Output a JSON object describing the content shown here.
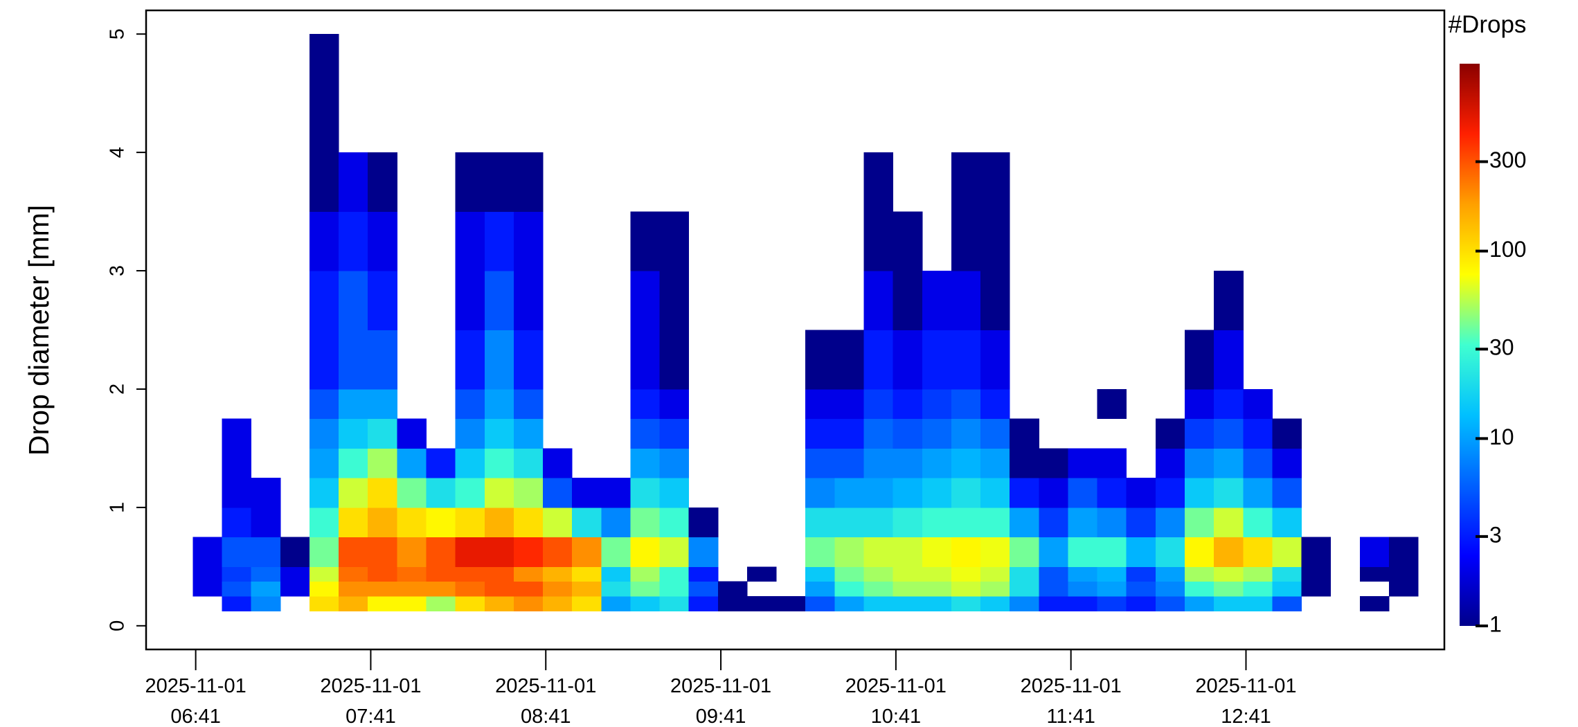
{
  "chart_data": {
    "type": "heatmap",
    "ylabel": "Drop diameter [mm]",
    "colorbar_title": "#Drops",
    "x": [
      "2025-11-01 06:40",
      "2025-11-01 06:50",
      "2025-11-01 07:00",
      "2025-11-01 07:10",
      "2025-11-01 07:20",
      "2025-11-01 07:30",
      "2025-11-01 07:40",
      "2025-11-01 07:50",
      "2025-11-01 08:00",
      "2025-11-01 08:10",
      "2025-11-01 08:20",
      "2025-11-01 08:30",
      "2025-11-01 08:40",
      "2025-11-01 08:50",
      "2025-11-01 09:00",
      "2025-11-01 09:10",
      "2025-11-01 09:20",
      "2025-11-01 09:30",
      "2025-11-01 09:40",
      "2025-11-01 09:50",
      "2025-11-01 10:00",
      "2025-11-01 10:10",
      "2025-11-01 10:20",
      "2025-11-01 10:30",
      "2025-11-01 10:40",
      "2025-11-01 10:50",
      "2025-11-01 11:00",
      "2025-11-01 11:10",
      "2025-11-01 11:20",
      "2025-11-01 11:30",
      "2025-11-01 11:40",
      "2025-11-01 11:50",
      "2025-11-01 12:00",
      "2025-11-01 12:10",
      "2025-11-01 12:20",
      "2025-11-01 12:30",
      "2025-11-01 12:40",
      "2025-11-01 12:50",
      "2025-11-01 13:00",
      "2025-11-01 13:10",
      "2025-11-01 13:20",
      "2025-11-01 13:30"
    ],
    "x_step_minutes": 10,
    "y_bins": [
      0.125,
      0.25,
      0.375,
      0.5,
      0.75,
      1,
      1.25,
      1.5,
      1.75,
      2,
      2.5,
      3,
      3.5,
      4,
      4.5,
      5
    ],
    "z": [
      [
        null,
        2,
        2,
        2,
        null,
        null,
        null,
        null,
        null,
        null,
        null,
        null,
        null,
        null,
        null
      ],
      [
        3,
        5,
        4,
        5,
        3,
        2,
        2,
        2,
        null,
        null,
        null,
        null,
        null,
        null,
        null
      ],
      [
        8,
        10,
        6,
        5,
        2,
        2,
        null,
        null,
        null,
        null,
        null,
        null,
        null,
        null,
        null
      ],
      [
        null,
        2,
        2,
        1,
        null,
        null,
        null,
        null,
        null,
        null,
        null,
        null,
        null,
        null,
        null
      ],
      [
        100,
        80,
        60,
        40,
        30,
        15,
        10,
        8,
        5,
        3,
        3,
        2,
        1,
        1,
        1
      ],
      [
        150,
        200,
        250,
        300,
        100,
        60,
        30,
        15,
        10,
        5,
        5,
        3,
        2,
        null,
        null
      ],
      [
        80,
        200,
        300,
        300,
        150,
        100,
        50,
        20,
        10,
        5,
        3,
        2,
        1,
        null,
        null
      ],
      [
        80,
        200,
        250,
        200,
        100,
        40,
        10,
        2,
        null,
        null,
        null,
        null,
        null,
        null,
        null
      ],
      [
        50,
        200,
        300,
        300,
        80,
        20,
        3,
        null,
        null,
        null,
        null,
        null,
        null,
        null,
        null
      ],
      [
        100,
        250,
        300,
        500,
        100,
        30,
        15,
        8,
        5,
        3,
        2,
        2,
        1,
        null,
        null
      ],
      [
        150,
        300,
        300,
        500,
        150,
        60,
        30,
        15,
        10,
        8,
        5,
        3,
        1,
        null,
        null
      ],
      [
        200,
        300,
        200,
        400,
        100,
        50,
        20,
        10,
        5,
        3,
        2,
        2,
        1,
        null,
        null
      ],
      [
        150,
        200,
        150,
        300,
        60,
        5,
        2,
        null,
        null,
        null,
        null,
        null,
        null,
        null,
        null
      ],
      [
        100,
        150,
        100,
        200,
        20,
        2,
        null,
        null,
        null,
        null,
        null,
        null,
        null,
        null,
        null
      ],
      [
        10,
        20,
        15,
        40,
        8,
        2,
        null,
        null,
        null,
        null,
        null,
        null,
        null,
        null,
        null
      ],
      [
        15,
        40,
        50,
        80,
        40,
        20,
        10,
        5,
        3,
        2,
        2,
        1,
        null,
        null,
        null
      ],
      [
        20,
        30,
        30,
        60,
        30,
        15,
        8,
        4,
        2,
        1,
        1,
        1,
        null,
        null,
        null
      ],
      [
        3,
        5,
        3,
        8,
        1,
        null,
        null,
        null,
        null,
        null,
        null,
        null,
        null,
        null,
        null
      ],
      [
        1,
        1,
        null,
        null,
        null,
        null,
        null,
        null,
        null,
        null,
        null,
        null,
        null,
        null,
        null
      ],
      [
        1,
        null,
        1,
        null,
        null,
        null,
        null,
        null,
        null,
        null,
        null,
        null,
        null,
        null,
        null
      ],
      [
        1,
        null,
        null,
        null,
        null,
        null,
        null,
        null,
        null,
        null,
        null,
        null,
        null,
        null,
        null
      ],
      [
        5,
        10,
        15,
        40,
        20,
        8,
        5,
        3,
        2,
        1,
        null,
        null,
        null,
        null,
        null
      ],
      [
        10,
        30,
        40,
        50,
        20,
        10,
        5,
        3,
        2,
        1,
        null,
        null,
        null,
        null,
        null
      ],
      [
        15,
        40,
        50,
        60,
        20,
        10,
        8,
        6,
        4,
        3,
        2,
        1,
        1,
        null,
        null
      ],
      [
        15,
        50,
        60,
        60,
        25,
        12,
        8,
        5,
        3,
        2,
        1,
        1,
        null,
        null,
        null
      ],
      [
        15,
        50,
        60,
        70,
        30,
        15,
        10,
        6,
        4,
        3,
        2,
        null,
        null,
        null,
        null
      ],
      [
        20,
        60,
        70,
        80,
        30,
        20,
        12,
        8,
        5,
        3,
        2,
        1,
        1,
        null,
        null
      ],
      [
        15,
        50,
        60,
        70,
        30,
        15,
        10,
        6,
        3,
        2,
        1,
        1,
        1,
        null,
        null
      ],
      [
        8,
        20,
        20,
        40,
        10,
        3,
        1,
        1,
        null,
        null,
        null,
        null,
        null,
        null,
        null
      ],
      [
        3,
        5,
        5,
        10,
        4,
        2,
        1,
        null,
        null,
        null,
        null,
        null,
        null,
        null,
        null
      ],
      [
        3,
        8,
        10,
        30,
        10,
        5,
        2,
        null,
        null,
        null,
        null,
        null,
        null,
        null,
        null
      ],
      [
        4,
        10,
        12,
        30,
        8,
        3,
        2,
        null,
        1,
        null,
        null,
        null,
        null,
        null,
        null
      ],
      [
        3,
        5,
        4,
        12,
        4,
        2,
        null,
        null,
        null,
        null,
        null,
        null,
        null,
        null,
        null
      ],
      [
        5,
        8,
        10,
        20,
        8,
        3,
        2,
        1,
        null,
        null,
        null,
        null,
        null,
        null,
        null
      ],
      [
        10,
        30,
        50,
        80,
        40,
        15,
        8,
        4,
        2,
        1,
        null,
        null,
        null,
        null,
        null
      ],
      [
        15,
        40,
        60,
        150,
        60,
        20,
        10,
        5,
        3,
        2,
        1,
        null,
        null,
        null,
        null
      ],
      [
        15,
        30,
        50,
        100,
        30,
        10,
        5,
        3,
        2,
        null,
        null,
        null,
        null,
        null,
        null
      ],
      [
        5,
        15,
        20,
        60,
        15,
        5,
        2,
        1,
        null,
        null,
        null,
        null,
        null,
        null,
        null
      ],
      [
        null,
        1,
        1,
        1,
        null,
        null,
        null,
        null,
        null,
        null,
        null,
        null,
        null,
        null,
        null
      ],
      [
        null,
        null,
        null,
        null,
        null,
        null,
        null,
        null,
        null,
        null,
        null,
        null,
        null,
        null,
        null
      ],
      [
        1,
        null,
        1,
        2,
        null,
        null,
        null,
        null,
        null,
        null,
        null,
        null,
        null,
        null,
        null
      ],
      [
        null,
        1,
        1,
        1,
        null,
        null,
        null,
        null,
        null,
        null,
        null,
        null,
        null,
        null,
        null
      ]
    ],
    "xlim": [
      "2025-11-01 06:24",
      "2025-11-01 13:49"
    ],
    "xticks": [
      {
        "value": "2025-11-01 06:41",
        "label": [
          "2025-11-01",
          "06:41"
        ]
      },
      {
        "value": "2025-11-01 07:41",
        "label": [
          "2025-11-01",
          "07:41"
        ]
      },
      {
        "value": "2025-11-01 08:41",
        "label": [
          "2025-11-01",
          "08:41"
        ]
      },
      {
        "value": "2025-11-01 09:41",
        "label": [
          "2025-11-01",
          "09:41"
        ]
      },
      {
        "value": "2025-11-01 10:41",
        "label": [
          "2025-11-01",
          "10:41"
        ]
      },
      {
        "value": "2025-11-01 11:41",
        "label": [
          "2025-11-01",
          "11:41"
        ]
      },
      {
        "value": "2025-11-01 12:41",
        "label": [
          "2025-11-01",
          "12:41"
        ]
      }
    ],
    "ylim": [
      -0.2,
      5.2
    ],
    "yticks": [
      0,
      1,
      2,
      3,
      4,
      5
    ],
    "clim": [
      1,
      1000
    ],
    "cticks": [
      1,
      3,
      10,
      30,
      100,
      300
    ],
    "color_scale": "log",
    "colors": [
      "#00008b",
      "#0000ff",
      "#0060ff",
      "#00c0ff",
      "#40ffd0",
      "#ffff00",
      "#ffa000",
      "#ff2000",
      "#8b0000"
    ]
  }
}
